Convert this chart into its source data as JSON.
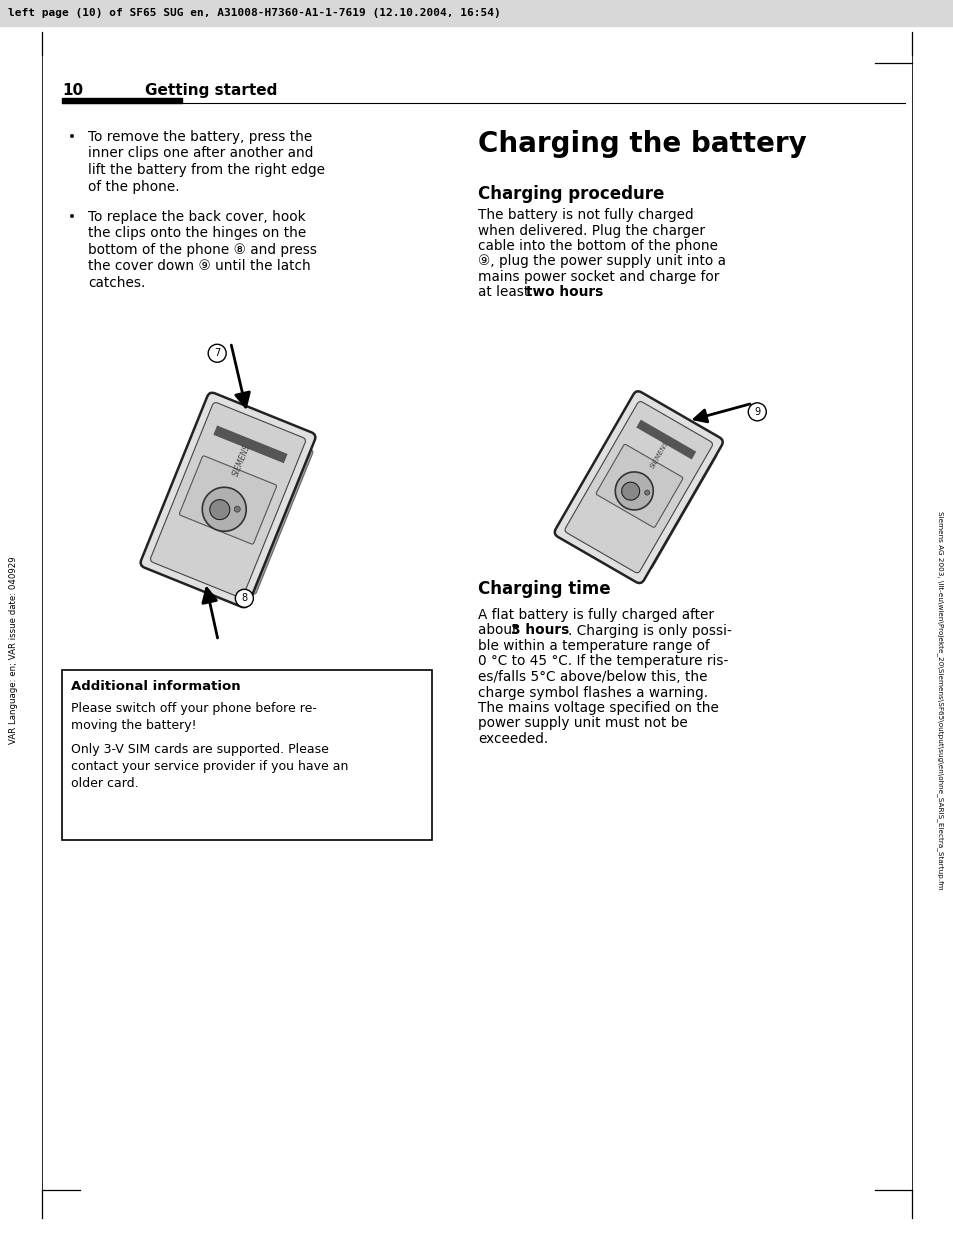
{
  "header_text": "left page (10) of SF65 SUG en, A31008-H7360-A1-1-7619 (12.10.2004, 16:54)",
  "page_number": "10",
  "section_title": "Getting started",
  "bullet1_line1": "To remove the battery, press the",
  "bullet1_line2": "inner clips one after another and",
  "bullet1_line3": "lift the battery from the right edge",
  "bullet1_line4": "of the phone.",
  "bullet2_line1": "To replace the back cover, hook",
  "bullet2_line2": "the clips onto the hinges on the",
  "bullet2_line3": "bottom of the phone ⑧ and press",
  "bullet2_line4": "the cover down ⑨ until the latch",
  "bullet2_line5": "catches.",
  "right_h1": "Charging the battery",
  "right_h2a": "Charging procedure",
  "right_p1_l1": "The battery is not fully charged",
  "right_p1_l2": "when delivered. Plug the charger",
  "right_p1_l3": "cable into the bottom of the phone",
  "right_p1_l4": "⑨, plug the power supply unit into a",
  "right_p1_l5": "mains power socket and charge for",
  "right_p1_l6a": "at least ",
  "right_p1_l6b": "two hours",
  "right_p1_l6c": ".",
  "right_h2b": "Charging time",
  "right_p2_l1": "A flat battery is fully charged after",
  "right_p2_l2a": "about ",
  "right_p2_l2b": "3 hours",
  "right_p2_l2c": ". Charging is only possi-",
  "right_p2_l3": "ble within a temperature range of",
  "right_p2_l4": "0 °C to 45 °C. If the temperature ris-",
  "right_p2_l5": "es/falls 5°C above/below this, the",
  "right_p2_l6": "charge symbol flashes a warning.",
  "right_p2_l7": "The mains voltage specified on the",
  "right_p2_l8": "power supply unit must not be",
  "right_p2_l9": "exceeded.",
  "box_title": "Additional information",
  "box_p1_l1": "Please switch off your phone before re-",
  "box_p1_l2": "moving the battery!",
  "box_p2_l1": "Only 3-V SIM cards are supported. Please",
  "box_p2_l2": "contact your service provider if you have an",
  "box_p2_l3": "older card.",
  "side_left": "VAR Language: en; VAR issue date: 040929",
  "side_right": "Siemens AG 2003, \\llt-eu\\wien\\Projekte_20\\Siemens\\SF65\\output\\sug\\en\\ohne_SARIS_Electra_Startup.fm",
  "bg_color": "#ffffff"
}
